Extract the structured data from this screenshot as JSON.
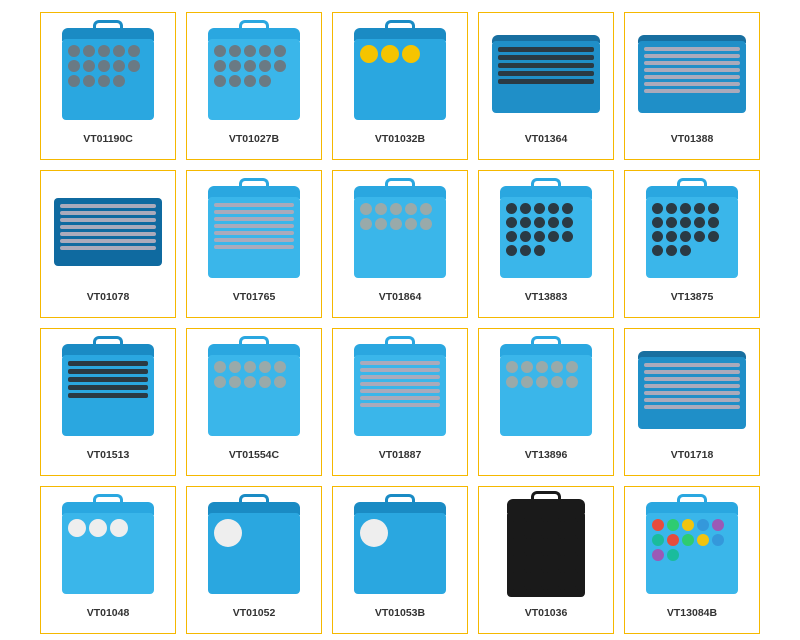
{
  "grid": {
    "columns": 5,
    "rows": 4,
    "card_border_color": "#f5b800",
    "card_background": "#ffffff",
    "label_color": "#333333",
    "label_fontsize": 10.5,
    "label_fontweight": "bold"
  },
  "products": [
    {
      "sku": "VT01190C",
      "case_color": "#2aa7e0",
      "lid_color": "#1a8bc4",
      "variant": "toolcase",
      "parts": "rounds"
    },
    {
      "sku": "VT01027B",
      "case_color": "#3ab6ea",
      "lid_color": "#2aa7e0",
      "variant": "toolcase",
      "parts": "rounds"
    },
    {
      "sku": "VT01032B",
      "case_color": "#2aa7e0",
      "lid_color": "#1a8bc4",
      "variant": "toolcase",
      "parts": "yellow"
    },
    {
      "sku": "VT01364",
      "case_color": "#1f8fc8",
      "lid_color": "#186fa0",
      "variant": "bigcase",
      "parts": "bars"
    },
    {
      "sku": "VT01388",
      "case_color": "#1f8fc8",
      "lid_color": "#186fa0",
      "variant": "bigcase",
      "parts": "tools"
    },
    {
      "sku": "VT01078",
      "case_color": "#0f6aa0",
      "lid_color": "#0f6aa0",
      "variant": "flatcase",
      "parts": "tools"
    },
    {
      "sku": "VT01765",
      "case_color": "#3ab6ea",
      "lid_color": "#2aa7e0",
      "variant": "toolcase",
      "parts": "tools"
    },
    {
      "sku": "VT01864",
      "case_color": "#3ab6ea",
      "lid_color": "#2aa7e0",
      "variant": "toolcase",
      "parts": "mixed"
    },
    {
      "sku": "VT13883",
      "case_color": "#3ab6ea",
      "lid_color": "#2aa7e0",
      "variant": "toolcase",
      "parts": "sockets"
    },
    {
      "sku": "VT13875",
      "case_color": "#3ab6ea",
      "lid_color": "#2aa7e0",
      "variant": "toolcase",
      "parts": "sockets"
    },
    {
      "sku": "VT01513",
      "case_color": "#2aa7e0",
      "lid_color": "#1a8bc4",
      "variant": "toolcase",
      "parts": "bars"
    },
    {
      "sku": "VT01554C",
      "case_color": "#3ab6ea",
      "lid_color": "#2aa7e0",
      "variant": "toolcase",
      "parts": "mixed"
    },
    {
      "sku": "VT01887",
      "case_color": "#3ab6ea",
      "lid_color": "#2aa7e0",
      "variant": "toolcase",
      "parts": "tools"
    },
    {
      "sku": "VT13896",
      "case_color": "#3ab6ea",
      "lid_color": "#2aa7e0",
      "variant": "toolcase",
      "parts": "mixed"
    },
    {
      "sku": "VT01718",
      "case_color": "#1f8fc8",
      "lid_color": "#186fa0",
      "variant": "bigcase",
      "parts": "tools"
    },
    {
      "sku": "VT01048",
      "case_color": "#3ab6ea",
      "lid_color": "#2aa7e0",
      "variant": "toolcase",
      "parts": "gauges"
    },
    {
      "sku": "VT01052",
      "case_color": "#2aa7e0",
      "lid_color": "#1a8bc4",
      "variant": "toolcase",
      "parts": "gauge"
    },
    {
      "sku": "VT01053B",
      "case_color": "#2aa7e0",
      "lid_color": "#1a8bc4",
      "variant": "toolcase",
      "parts": "gauge"
    },
    {
      "sku": "VT01036",
      "case_color": "#1a1a1a",
      "lid_color": "#1a1a1a",
      "variant": "tallcase",
      "parts": "cups"
    },
    {
      "sku": "VT13084B",
      "case_color": "#3ab6ea",
      "lid_color": "#2aa7e0",
      "variant": "toolcase",
      "parts": "colorful"
    }
  ],
  "part_schemes": {
    "rounds": {
      "type": "round",
      "count": 14,
      "color": "#6a7a84"
    },
    "yellow": {
      "type": "yellow",
      "count": 3
    },
    "bars": {
      "type": "bar",
      "count": 5
    },
    "tools": {
      "type": "tool",
      "count": 7
    },
    "sockets": {
      "type": "sock",
      "count": 18
    },
    "mixed": {
      "type": "round",
      "count": 10,
      "color": "#9aa"
    },
    "cups": {
      "type": "cup",
      "count": 20
    },
    "gauge": {
      "type": "round",
      "count": 1,
      "color": "#eee",
      "size": 28
    },
    "gauges": {
      "type": "round",
      "count": 3,
      "color": "#eee",
      "size": 18
    },
    "colorful": {
      "type": "round",
      "count": 12,
      "colors": [
        "#e74c3c",
        "#2ecc71",
        "#f1c40f",
        "#3498db",
        "#9b59b6",
        "#1abc9c"
      ]
    }
  }
}
